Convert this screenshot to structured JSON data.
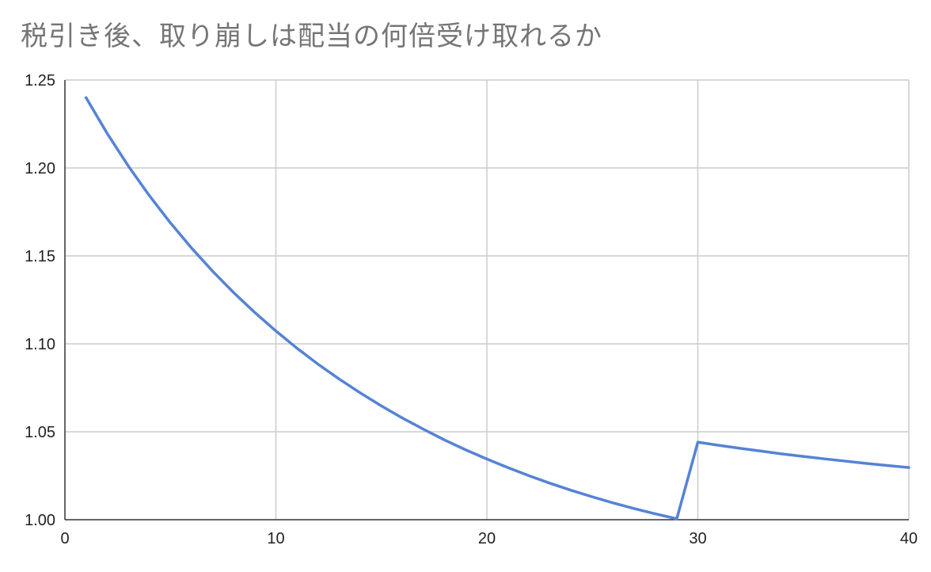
{
  "chart_data": {
    "type": "line",
    "title": "税引き後、取り崩しは配当の何倍受け取れるか",
    "xlabel": "",
    "ylabel": "",
    "xlim": [
      0,
      40
    ],
    "ylim": [
      1.0,
      1.25
    ],
    "x_ticks": [
      "0",
      "10",
      "20",
      "30",
      "40"
    ],
    "y_ticks": [
      "1.00",
      "1.05",
      "1.10",
      "1.15",
      "1.20",
      "1.25"
    ],
    "grid": true,
    "legend": "none",
    "series": [
      {
        "color": "#5583d6",
        "x": [
          1,
          2,
          3,
          4,
          5,
          6,
          7,
          8,
          9,
          10,
          11,
          12,
          13,
          14,
          15,
          16,
          17,
          18,
          19,
          20,
          21,
          22,
          23,
          24,
          25,
          26,
          27,
          28,
          29,
          30,
          31,
          32,
          33,
          34,
          35,
          36,
          37,
          38,
          39,
          40
        ],
        "y": [
          1.24,
          1.2197,
          1.2012,
          1.1843,
          1.1688,
          1.1545,
          1.1413,
          1.1291,
          1.1178,
          1.1073,
          1.0975,
          1.0884,
          1.08,
          1.0721,
          1.0647,
          1.0578,
          1.0514,
          1.0453,
          1.0397,
          1.0345,
          1.0296,
          1.025,
          1.0207,
          1.0167,
          1.013,
          1.0095,
          1.0063,
          1.0033,
          1.0005,
          1.0441,
          1.0423,
          1.0406,
          1.039,
          1.0374,
          1.036,
          1.0346,
          1.0333,
          1.032,
          1.0308,
          1.0297
        ]
      }
    ]
  }
}
